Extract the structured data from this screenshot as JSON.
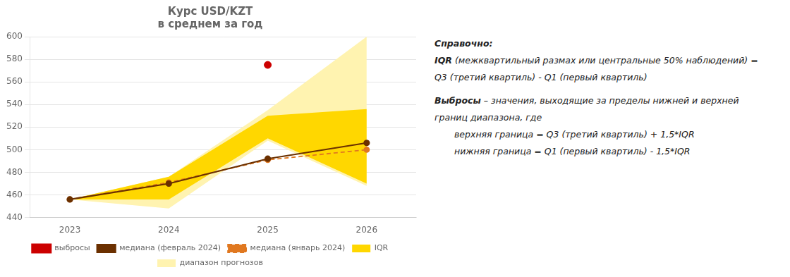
{
  "chart_data": {
    "type": "line",
    "title": "Курс USD/KZT",
    "subtitle": "в среднем за год",
    "x": [
      2023,
      2024,
      2025,
      2026
    ],
    "xlim": [
      2022.6,
      2026.5
    ],
    "xticks": [
      2023,
      2024,
      2025,
      2026
    ],
    "ylim": [
      440,
      600
    ],
    "yticks": [
      440,
      460,
      480,
      500,
      520,
      540,
      560,
      580,
      600
    ],
    "grid": true,
    "legend": "bottom",
    "series": [
      {
        "name": "диапазон прогнозов",
        "type": "area",
        "color": "#FFF3B0",
        "lower": [
          456,
          448,
          508,
          468
        ],
        "upper": [
          456,
          476,
          535,
          600
        ]
      },
      {
        "name": "IQR",
        "type": "area",
        "color": "#FFD700",
        "lower": [
          456,
          456,
          510,
          470
        ],
        "upper": [
          456,
          476,
          530,
          536
        ]
      },
      {
        "name": "медиана (январь 2024)",
        "type": "line",
        "color": "#E07820",
        "line_style": "dashed",
        "marker": "circle",
        "values": [
          456,
          471,
          491,
          500
        ]
      },
      {
        "name": "медиана (февраль 2024)",
        "type": "line",
        "color": "#6B3000",
        "line_style": "solid",
        "marker": "circle",
        "values": [
          456,
          470,
          492,
          506
        ]
      },
      {
        "name": "выбросы",
        "type": "scatter",
        "color": "#CC0000",
        "marker": "circle",
        "x": [
          2025
        ],
        "values": [
          575
        ]
      }
    ],
    "annotations": [
      "Справочно:",
      "IQR (межквартильный размах или центральные 50% наблюдений) =",
      "Q3 (третий квартиль) - Q1 (первый квартиль)",
      "Выбросы – значения, выходящие за пределы нижней и верхней",
      "границ диапазона, где",
      "верхняя граница = Q3 (третий квартиль) + 1,5*IQR",
      "нижняя граница = Q1 (первый квартиль) - 1,5*IQR"
    ]
  }
}
